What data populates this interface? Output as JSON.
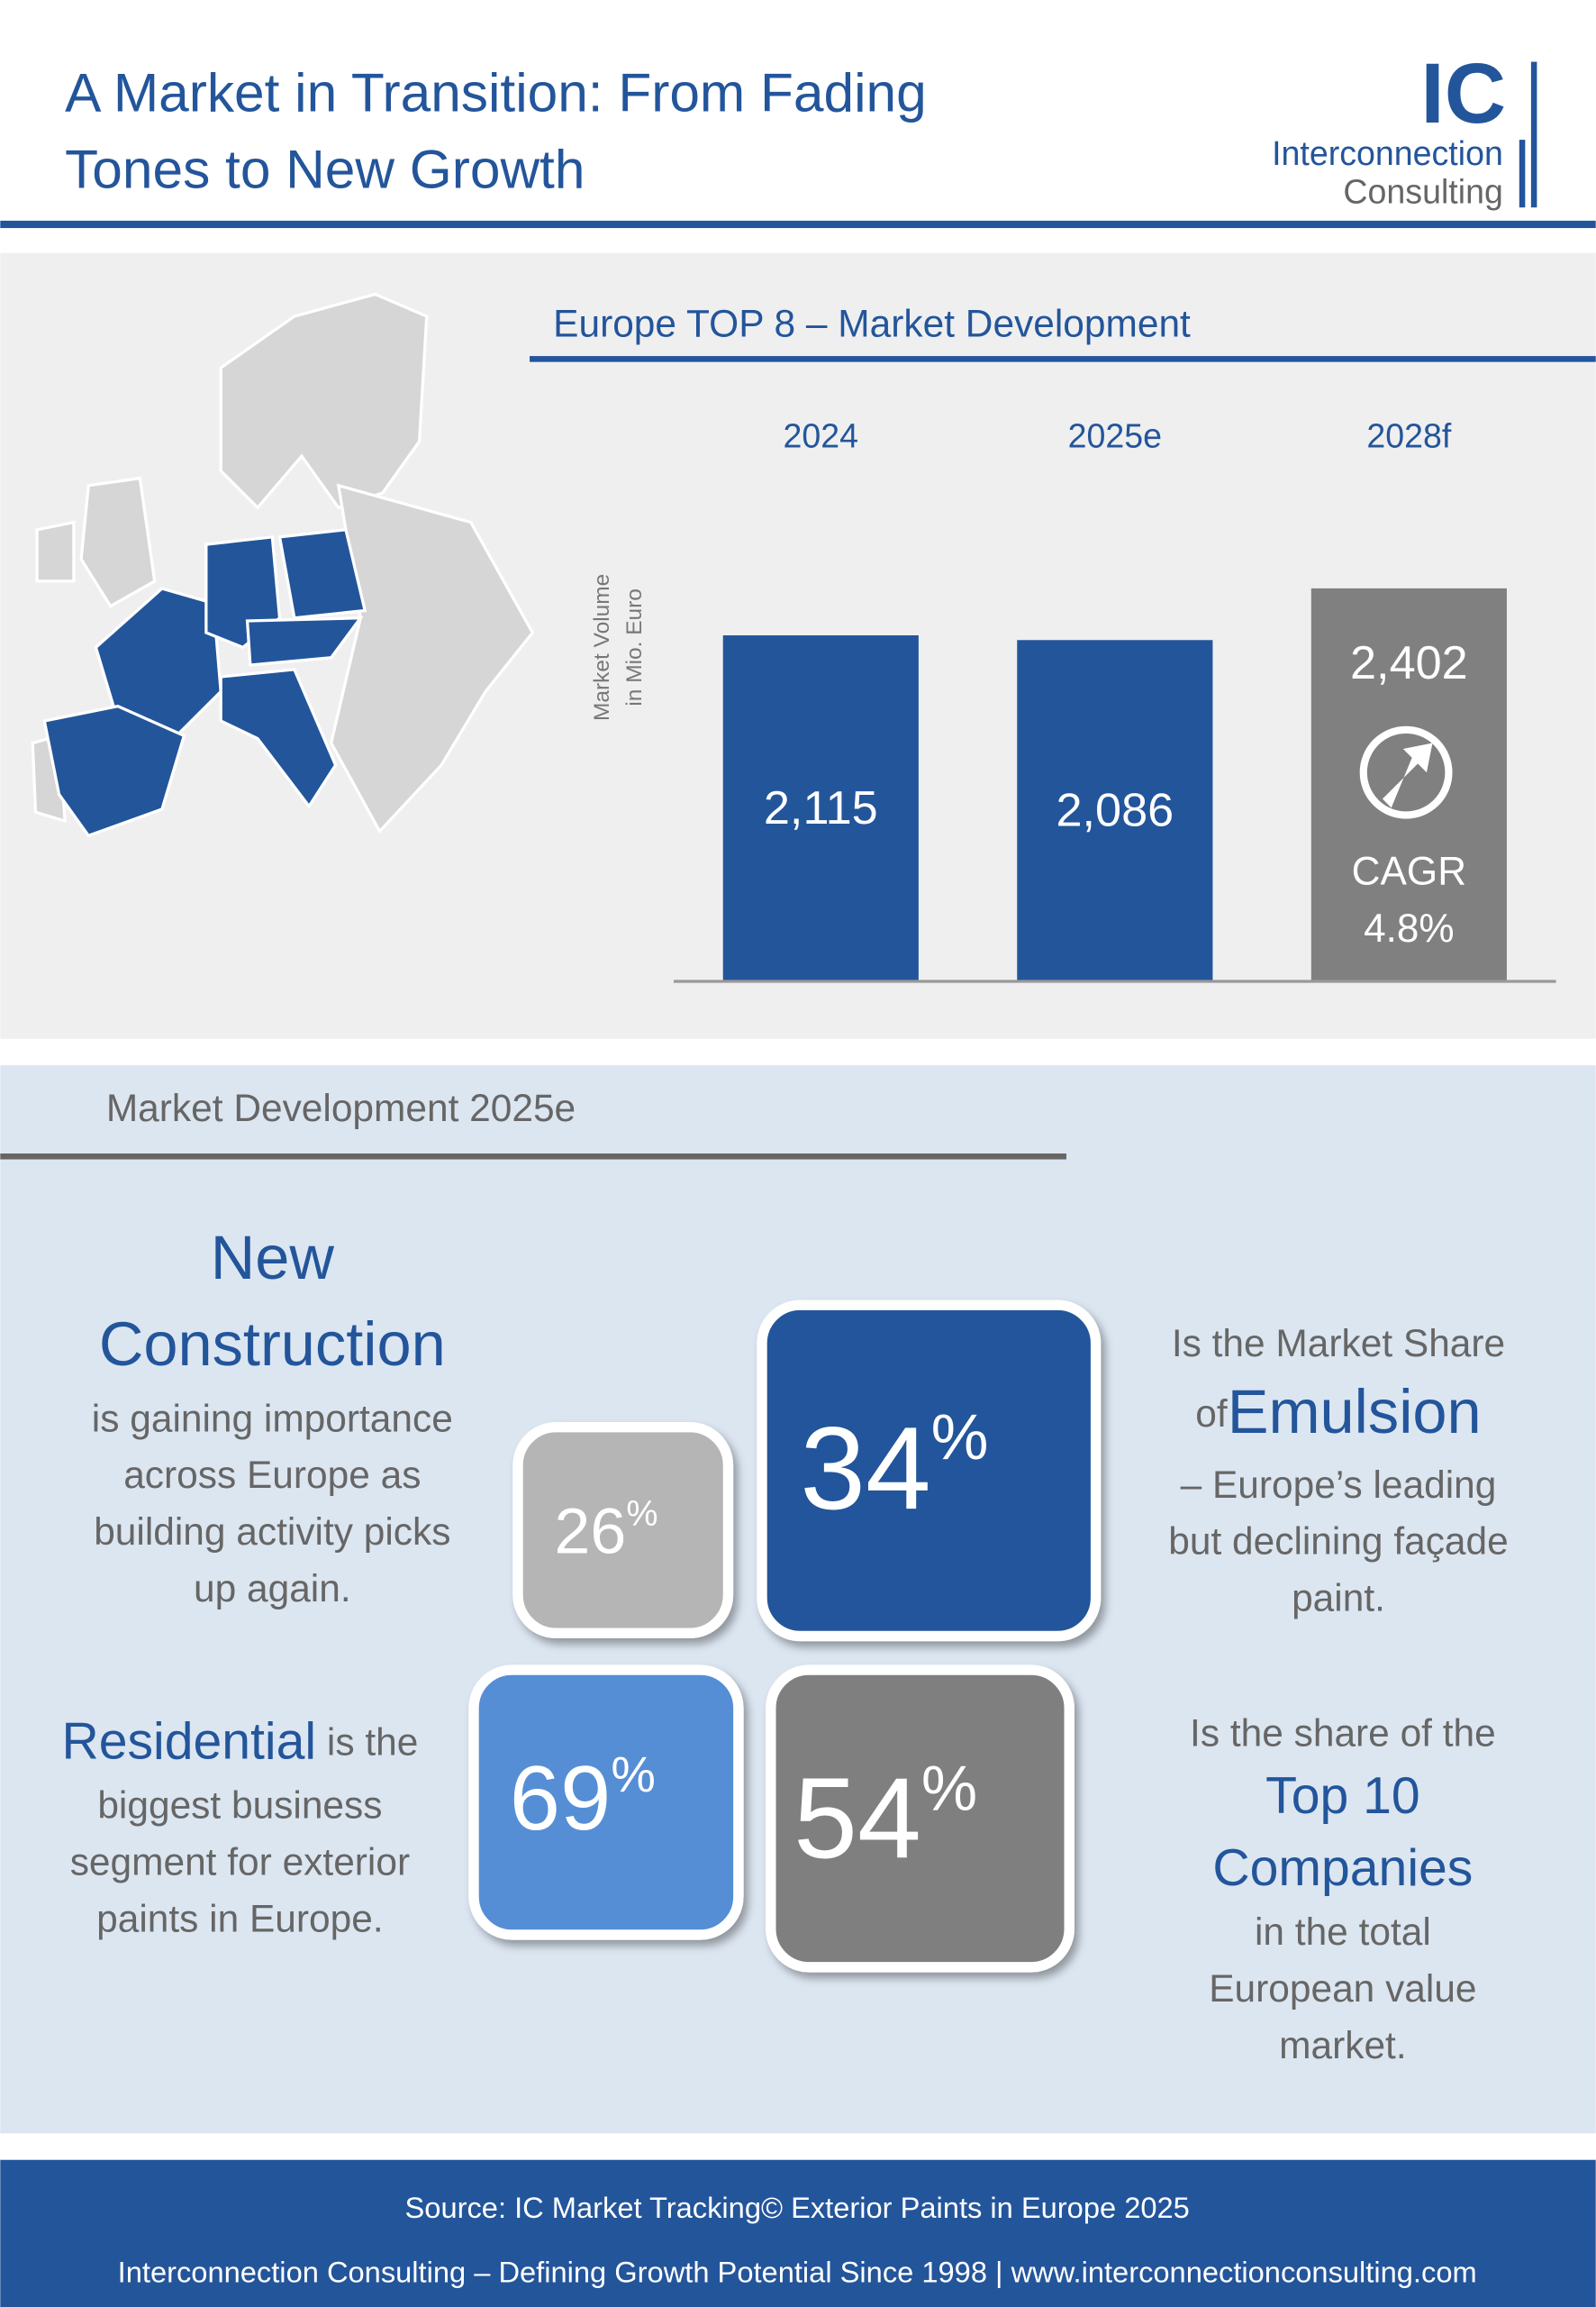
{
  "header": {
    "title_lines": [
      "A Market in Transition: From Fading",
      "Tones to New Growth"
    ],
    "logo_mark": "IC",
    "logo_line1": "Interconnection",
    "logo_line2": "Consulting"
  },
  "chart_data": {
    "type": "bar",
    "title": "Europe TOP 8 – Market Development",
    "y_label": [
      "Market Volume",
      "in Mio. Euro"
    ],
    "categories": [
      "2024",
      "2025e",
      "2028f"
    ],
    "values": [
      2115,
      2086,
      2402
    ],
    "value_labels": [
      "2,115",
      "2,086",
      "2,402"
    ],
    "colors": [
      "#23559b",
      "#23559b",
      "#808080"
    ],
    "ylim": [
      0,
      2500
    ],
    "annotation": [
      "CAGR",
      "4.8%"
    ]
  },
  "section": {
    "title": "Market Development 2025e",
    "new_construction": {
      "heading": [
        "New",
        "Construction"
      ],
      "lines": [
        "is gaining importance",
        "across Europe as",
        "building activity picks",
        "up again."
      ]
    },
    "emulsion": {
      "line1": "Is the Market Share",
      "of": "of",
      "highlight": "Emulsion",
      "lines": [
        "– Europe’s leading",
        "but declining façade",
        "paint."
      ]
    },
    "residential": {
      "highlight": "Residential",
      "rest": " is the",
      "lines": [
        "biggest business",
        "segment for exterior",
        "paints in Europe."
      ]
    },
    "top10": {
      "line1": "Is the share of the",
      "highlight": [
        "Top 10",
        "Companies"
      ],
      "lines": [
        "in the total",
        "European value",
        "market."
      ]
    },
    "tiles": [
      {
        "number": "26",
        "unit": "%"
      },
      {
        "number": "34",
        "unit": "%"
      },
      {
        "number": "69",
        "unit": "%"
      },
      {
        "number": "54",
        "unit": "%"
      }
    ]
  },
  "footer": {
    "source": "Source: IC Market Tracking© Exterior Paints in Europe 2025",
    "tagline": "Interconnection Consulting – Defining Growth Potential Since 1998 | www.interconnectionconsulting.com"
  }
}
